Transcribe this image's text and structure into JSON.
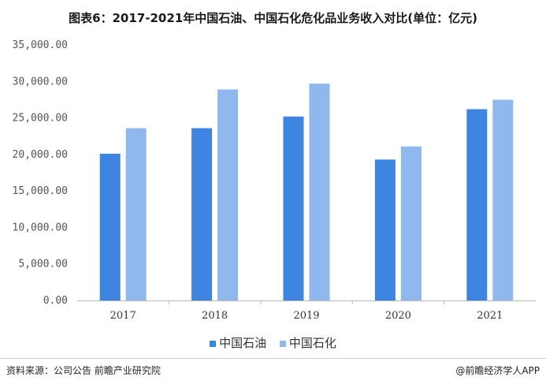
{
  "title": "图表6：2017-2021年中国石油、中国石化危化品业务收入对比(单位：亿元)",
  "source": "资料来源：公司公告 前瞻产业研究院",
  "brand": "@前瞻经济学人APP",
  "colors": {
    "series1": "#3d85e0",
    "series2": "#8eb8ee",
    "axis": "#bbbbbb"
  },
  "chart_data": {
    "type": "bar",
    "categories": [
      "2017",
      "2018",
      "2019",
      "2020",
      "2021"
    ],
    "series": [
      {
        "name": "中国石油",
        "values": [
          20100,
          23600,
          25200,
          19300,
          26200
        ]
      },
      {
        "name": "中国石化",
        "values": [
          23600,
          28900,
          29700,
          21100,
          27500
        ]
      }
    ],
    "ylim": [
      0,
      35000
    ],
    "yticks": [
      "0.00",
      "5,000.00",
      "10,000.00",
      "15,000.00",
      "20,000.00",
      "25,000.00",
      "30,000.00",
      "35,000.00"
    ],
    "grid": false,
    "legend": "bottom"
  }
}
